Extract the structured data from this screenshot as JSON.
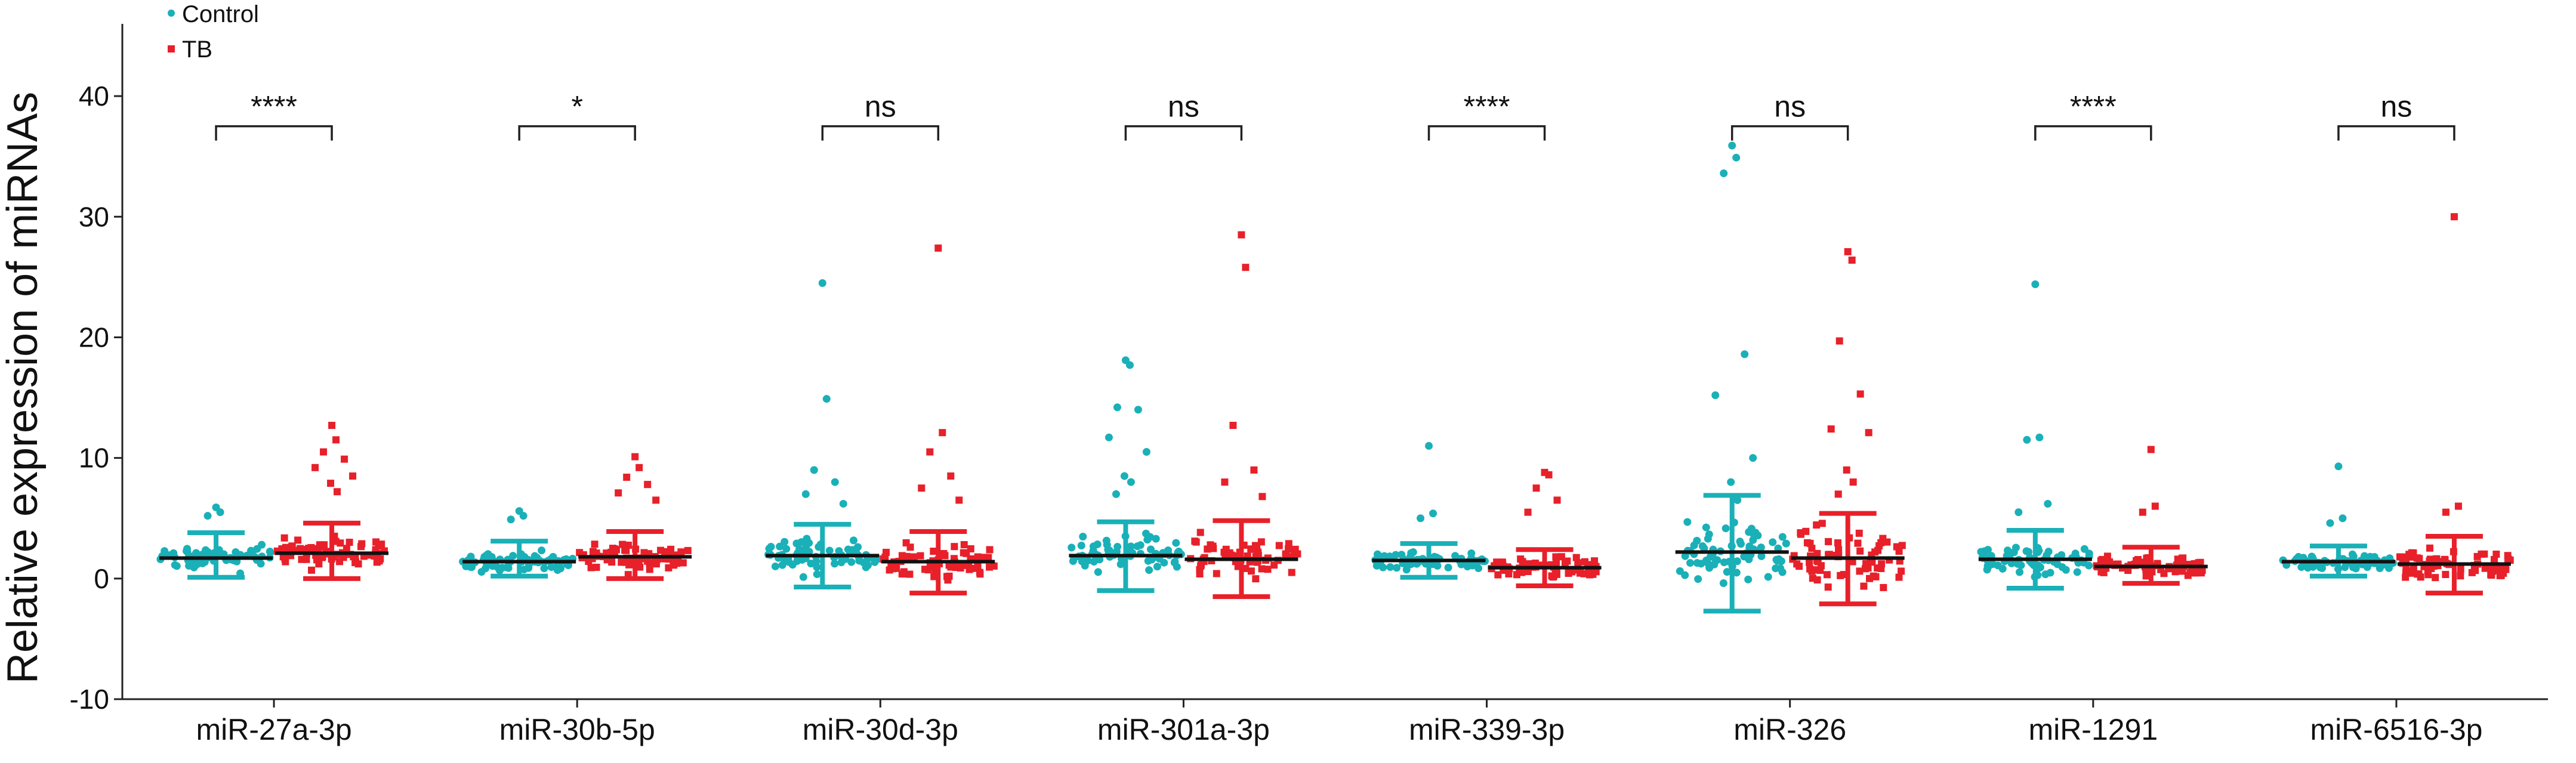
{
  "chart_data": {
    "type": "scatter",
    "ylabel": "Relative expression of miRNAs",
    "ylim": [
      -10,
      45
    ],
    "yticks": [
      -10,
      0,
      10,
      20,
      30,
      40
    ],
    "legend": {
      "placement": "top-left",
      "entries": [
        {
          "name": "Control",
          "color": "#1ab0b8",
          "marker": "circle"
        },
        {
          "name": "TB",
          "color": "#e8202a",
          "marker": "square"
        }
      ]
    },
    "categories": [
      "miR-27a-3p",
      "miR-30b-5p",
      "miR-30d-3p",
      "miR-301a-3p",
      "miR-339-3p",
      "miR-326",
      "miR-1291",
      "miR-6516-3p"
    ],
    "significance": [
      "****",
      "*",
      "ns",
      "ns",
      "****",
      "ns",
      "****",
      "ns"
    ],
    "bracket_y": 37.5,
    "groups": [
      {
        "category": "miR-27a-3p",
        "control": {
          "mean": 1.7,
          "sd_low": 0.1,
          "sd_high": 3.8,
          "outliers": [
            5.9,
            5.5,
            5.2
          ]
        },
        "tb": {
          "mean": 2.1,
          "sd_low": 0.0,
          "sd_high": 4.6,
          "outliers": [
            12.7,
            11.5,
            10.5,
            9.9,
            9.2,
            8.5,
            7.9,
            7.2
          ]
        }
      },
      {
        "category": "miR-30b-5p",
        "control": {
          "mean": 1.4,
          "sd_low": 0.2,
          "sd_high": 3.1,
          "outliers": [
            5.6,
            5.2,
            4.9
          ]
        },
        "tb": {
          "mean": 1.8,
          "sd_low": 0.0,
          "sd_high": 3.9,
          "outliers": [
            10.1,
            9.2,
            8.4,
            7.8,
            7.1,
            6.5
          ]
        }
      },
      {
        "category": "miR-30d-3p",
        "control": {
          "mean": 1.9,
          "sd_low": -0.7,
          "sd_high": 4.5,
          "outliers": [
            24.5,
            14.9,
            9.0,
            8.0,
            7.0,
            6.2
          ]
        },
        "tb": {
          "mean": 1.4,
          "sd_low": -1.2,
          "sd_high": 3.9,
          "outliers": [
            27.4,
            12.1,
            10.5,
            8.5,
            7.5,
            6.5
          ]
        }
      },
      {
        "category": "miR-301a-3p",
        "control": {
          "mean": 1.9,
          "sd_low": -1.0,
          "sd_high": 4.7,
          "outliers": [
            18.1,
            17.7,
            14.2,
            14.0,
            11.7,
            10.5,
            8.5,
            8.0,
            7.0
          ]
        },
        "tb": {
          "mean": 1.6,
          "sd_low": -1.5,
          "sd_high": 4.8,
          "outliers": [
            28.5,
            25.8,
            12.7,
            9.0,
            8.0,
            6.8
          ]
        }
      },
      {
        "category": "miR-339-3p",
        "control": {
          "mean": 1.5,
          "sd_low": 0.1,
          "sd_high": 2.9,
          "outliers": [
            11.0,
            5.4,
            5.0
          ]
        },
        "tb": {
          "mean": 0.9,
          "sd_low": -0.6,
          "sd_high": 2.4,
          "outliers": [
            8.8,
            8.6,
            7.5,
            6.5,
            5.5
          ]
        }
      },
      {
        "category": "miR-326",
        "control": {
          "mean": 2.2,
          "sd_low": -2.7,
          "sd_high": 6.9,
          "outliers": [
            35.9,
            34.9,
            33.6,
            18.6,
            15.2,
            10.0,
            8.0,
            6.5
          ]
        },
        "tb": {
          "mean": 1.7,
          "sd_low": -2.1,
          "sd_high": 5.4,
          "outliers": [
            27.1,
            26.4,
            19.7,
            15.3,
            12.4,
            12.1,
            9.0,
            8.0,
            7.0
          ]
        }
      },
      {
        "category": "miR-1291",
        "control": {
          "mean": 1.6,
          "sd_low": -0.8,
          "sd_high": 4.0,
          "outliers": [
            24.4,
            11.7,
            11.5,
            6.2,
            5.5
          ]
        },
        "tb": {
          "mean": 1.0,
          "sd_low": -0.4,
          "sd_high": 2.6,
          "outliers": [
            10.7,
            6.0,
            5.5
          ]
        }
      },
      {
        "category": "miR-6516-3p",
        "control": {
          "mean": 1.4,
          "sd_low": 0.2,
          "sd_high": 2.7,
          "outliers": [
            9.3,
            5.0,
            4.6
          ]
        },
        "tb": {
          "mean": 1.2,
          "sd_low": -1.2,
          "sd_high": 3.5,
          "outliers": [
            30.0,
            6.0,
            5.5
          ]
        }
      }
    ]
  }
}
